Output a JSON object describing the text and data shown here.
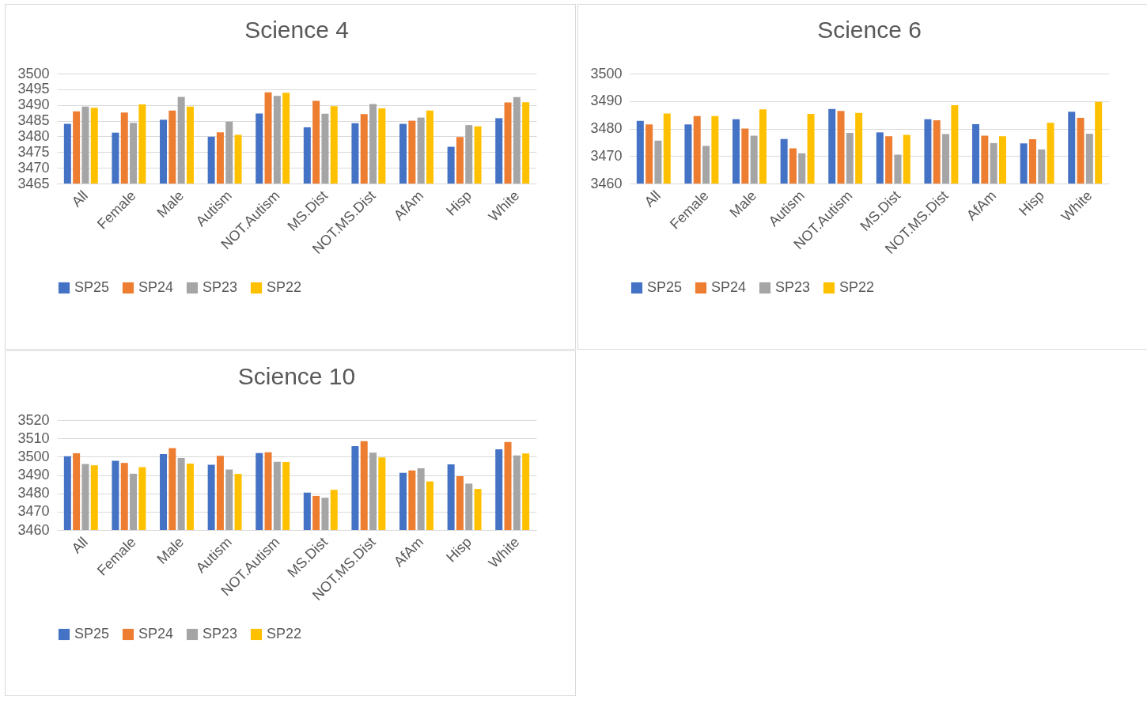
{
  "chart_data": [
    {
      "type": "bar",
      "title": "Science 4",
      "categories": [
        "All",
        "Female",
        "Male",
        "Autism",
        "NOT.Autism",
        "MS.Dist",
        "NOT.MS.Dist",
        "AfAm",
        "Hisp",
        "White"
      ],
      "ylim": [
        3465,
        3500
      ],
      "yticks": [
        3465,
        3470,
        3475,
        3480,
        3485,
        3490,
        3495,
        3500
      ],
      "grid": "y",
      "legend": "bottom",
      "series": [
        {
          "name": "SP25",
          "color": "#4472c4",
          "values": [
            3484,
            3481.2,
            3485.3,
            3479.9,
            3487.3,
            3482.9,
            3484.2,
            3484,
            3476.7,
            3485.8
          ]
        },
        {
          "name": "SP24",
          "color": "#ed7d31",
          "values": [
            3488,
            3487.6,
            3488.2,
            3481.3,
            3494,
            3491.3,
            3487.1,
            3485,
            3479.8,
            3490.8
          ]
        },
        {
          "name": "SP23",
          "color": "#a5a5a5",
          "values": [
            3489.5,
            3484.3,
            3492.6,
            3484.7,
            3492.9,
            3487.2,
            3490.3,
            3486,
            3483.6,
            3492.5
          ]
        },
        {
          "name": "SP22",
          "color": "#ffc000",
          "values": [
            3489.1,
            3490.2,
            3489.5,
            3480.5,
            3493.9,
            3489.6,
            3488.9,
            3488.2,
            3483.2,
            3490.9
          ]
        }
      ]
    },
    {
      "type": "bar",
      "title": "Science 6",
      "categories": [
        "All",
        "Female",
        "Male",
        "Autism",
        "NOT.Autism",
        "MS.Dist",
        "NOT.MS.Dist",
        "AfAm",
        "Hisp",
        "White"
      ],
      "ylim": [
        3460,
        3500
      ],
      "yticks": [
        3460,
        3470,
        3480,
        3490,
        3500
      ],
      "grid": "y",
      "legend": "bottom",
      "series": [
        {
          "name": "SP25",
          "color": "#4472c4",
          "values": [
            3482.8,
            3481.5,
            3483.4,
            3476.2,
            3487.1,
            3478.6,
            3483.4,
            3481.6,
            3474.6,
            3486.1
          ]
        },
        {
          "name": "SP24",
          "color": "#ed7d31",
          "values": [
            3481.5,
            3484.5,
            3480,
            3472.8,
            3486.4,
            3477.2,
            3483,
            3477.4,
            3476.1,
            3483.9
          ]
        },
        {
          "name": "SP23",
          "color": "#a5a5a5",
          "values": [
            3475.6,
            3473.7,
            3477.4,
            3471,
            3478.4,
            3470.5,
            3478,
            3474.7,
            3472.4,
            3478.1
          ]
        },
        {
          "name": "SP22",
          "color": "#ffc000",
          "values": [
            3485.5,
            3484.5,
            3487,
            3485.3,
            3485.7,
            3477.7,
            3488.5,
            3477.2,
            3482.1,
            3489.7
          ]
        }
      ]
    },
    {
      "type": "bar",
      "title": "Science 10",
      "categories": [
        "All",
        "Female",
        "Male",
        "Autism",
        "NOT.Autism",
        "MS.Dist",
        "NOT.MS.Dist",
        "AfAm",
        "Hisp",
        "White"
      ],
      "ylim": [
        3460,
        3520
      ],
      "yticks": [
        3460,
        3470,
        3480,
        3490,
        3500,
        3510,
        3520
      ],
      "grid": "y",
      "legend": "bottom",
      "series": [
        {
          "name": "SP25",
          "color": "#4472c4",
          "values": [
            3500.2,
            3497.8,
            3501.4,
            3495.6,
            3502,
            3480.4,
            3505.8,
            3491.2,
            3495.8,
            3504
          ]
        },
        {
          "name": "SP24",
          "color": "#ed7d31",
          "values": [
            3501.9,
            3496.6,
            3504.7,
            3500.5,
            3502.4,
            3478.6,
            3508.5,
            3492.5,
            3489.3,
            3508
          ]
        },
        {
          "name": "SP23",
          "color": "#a5a5a5",
          "values": [
            3496,
            3490.7,
            3499.3,
            3493,
            3497.2,
            3477.6,
            3502.2,
            3493.7,
            3485.3,
            3500.7
          ]
        },
        {
          "name": "SP22",
          "color": "#ffc000",
          "values": [
            3495.3,
            3494.3,
            3496.2,
            3490.6,
            3497.1,
            3481.9,
            3499.6,
            3486.5,
            3482.4,
            3501.8
          ]
        }
      ]
    }
  ]
}
